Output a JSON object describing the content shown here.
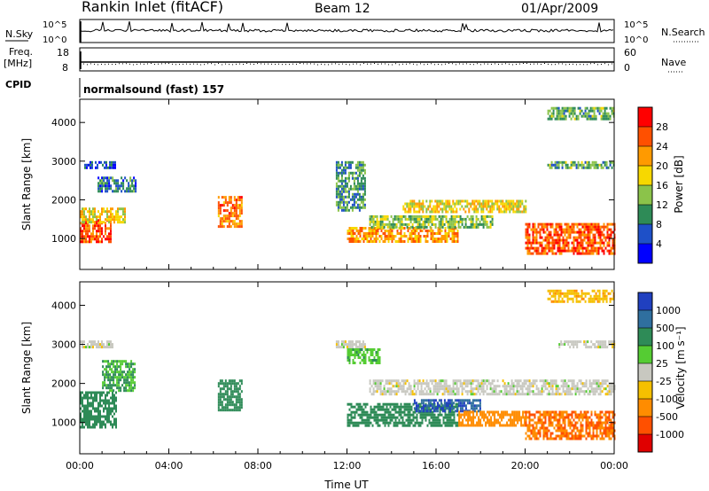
{
  "header": {
    "station": "Rankin Inlet (fitACF)",
    "beam": "Beam 12",
    "date": "01/Apr/2009"
  },
  "strip_labels": {
    "nsky": "N.Sky",
    "nsky_top": "10^5",
    "nsky_bottom": "10^0",
    "nsearch": "N.Search",
    "nsearch_top": "10^5",
    "nsearch_bottom": "10^0",
    "freq": "Freq.",
    "freq_unit": "[MHz]",
    "freq_top": "18",
    "freq_bottom": "8",
    "nave": "Nave",
    "nave_top": "60",
    "nave_bottom": "0",
    "cpid": "CPID",
    "cpid_value": "normalsound (fast) 157"
  },
  "x_axis": {
    "label": "Time UT",
    "ticks": [
      "00:00",
      "04:00",
      "08:00",
      "12:00",
      "16:00",
      "20:00",
      "00:00"
    ]
  },
  "power_panel": {
    "ylabel": "Slant Range [km]",
    "yticks": [
      "1000",
      "2000",
      "3000",
      "4000"
    ],
    "colorbar_label": "Power [dB]",
    "colorbar_ticks": [
      "28",
      "24",
      "20",
      "16",
      "12",
      "8",
      "4"
    ],
    "colors": [
      "#ff0000",
      "#ff5000",
      "#ff9a00",
      "#f7d800",
      "#8bc34a",
      "#2e8b57",
      "#1e50c8",
      "#0000ff"
    ]
  },
  "velocity_panel": {
    "ylabel": "Slant Range [km]",
    "yticks": [
      "1000",
      "2000",
      "3000",
      "4000"
    ],
    "colorbar_label": "Velocity [m s⁻¹]",
    "colorbar_ticks": [
      "1000",
      "500",
      "100",
      "25",
      "-25",
      "-100",
      "-500",
      "-1000"
    ],
    "colors": [
      "#2040c0",
      "#2f6f9f",
      "#2e8b57",
      "#55cc33",
      "#c8c8c0",
      "#f5c000",
      "#ff8c00",
      "#ff5000",
      "#e00000"
    ]
  },
  "chart_data": [
    {
      "type": "heatmap",
      "title": "Power",
      "x_range_hours": [
        0,
        24
      ],
      "y_range_km": [
        200,
        4600
      ],
      "value_range_db": [
        0,
        32
      ],
      "regions": [
        {
          "t": [
            0.0,
            1.4
          ],
          "r": [
            900,
            1500
          ],
          "v": 26
        },
        {
          "t": [
            0.0,
            2.0
          ],
          "r": [
            1400,
            1800
          ],
          "v": 18
        },
        {
          "t": [
            0.8,
            2.5
          ],
          "r": [
            2200,
            2600
          ],
          "v": 8
        },
        {
          "t": [
            0.2,
            1.6
          ],
          "r": [
            2800,
            3000
          ],
          "v": 6
        },
        {
          "t": [
            6.2,
            7.3
          ],
          "r": [
            1300,
            2100
          ],
          "v": 24
        },
        {
          "t": [
            11.5,
            12.8
          ],
          "r": [
            1700,
            3000
          ],
          "v": 10
        },
        {
          "t": [
            12.0,
            17.0
          ],
          "r": [
            900,
            1300
          ],
          "v": 22
        },
        {
          "t": [
            13.0,
            18.5
          ],
          "r": [
            1300,
            1600
          ],
          "v": 14
        },
        {
          "t": [
            14.5,
            20.0
          ],
          "r": [
            1700,
            2000
          ],
          "v": 18
        },
        {
          "t": [
            20.0,
            24.0
          ],
          "r": [
            600,
            1400
          ],
          "v": 26
        },
        {
          "t": [
            21.0,
            24.0
          ],
          "r": [
            2800,
            3000
          ],
          "v": 12
        },
        {
          "t": [
            21.0,
            24.0
          ],
          "r": [
            4100,
            4400
          ],
          "v": 12
        }
      ]
    },
    {
      "type": "heatmap",
      "title": "Velocity",
      "x_range_hours": [
        0,
        24
      ],
      "y_range_km": [
        200,
        4600
      ],
      "value_range_ms": [
        -1000,
        1000
      ],
      "regions": [
        {
          "t": [
            0.0,
            1.6
          ],
          "r": [
            900,
            1800
          ],
          "v": 150
        },
        {
          "t": [
            1.0,
            2.5
          ],
          "r": [
            1800,
            2600
          ],
          "v": 100
        },
        {
          "t": [
            0.0,
            1.5
          ],
          "r": [
            2900,
            3100
          ],
          "v": 0
        },
        {
          "t": [
            6.2,
            7.3
          ],
          "r": [
            1300,
            2100
          ],
          "v": 200
        },
        {
          "t": [
            11.5,
            12.8
          ],
          "r": [
            2900,
            3100
          ],
          "v": 0
        },
        {
          "t": [
            12.0,
            13.5
          ],
          "r": [
            2500,
            2900
          ],
          "v": 80
        },
        {
          "t": [
            12.0,
            17.0
          ],
          "r": [
            900,
            1500
          ],
          "v": 300
        },
        {
          "t": [
            15.0,
            18.0
          ],
          "r": [
            1300,
            1600
          ],
          "v": 1000
        },
        {
          "t": [
            13.0,
            24.0
          ],
          "r": [
            1700,
            2100
          ],
          "v": 0
        },
        {
          "t": [
            17.0,
            20.0
          ],
          "r": [
            900,
            1300
          ],
          "v": -300
        },
        {
          "t": [
            20.0,
            24.0
          ],
          "r": [
            600,
            1300
          ],
          "v": -500
        },
        {
          "t": [
            21.5,
            24.0
          ],
          "r": [
            2900,
            3100
          ],
          "v": 0
        },
        {
          "t": [
            21.0,
            24.0
          ],
          "r": [
            4100,
            4400
          ],
          "v": -80
        }
      ]
    }
  ]
}
